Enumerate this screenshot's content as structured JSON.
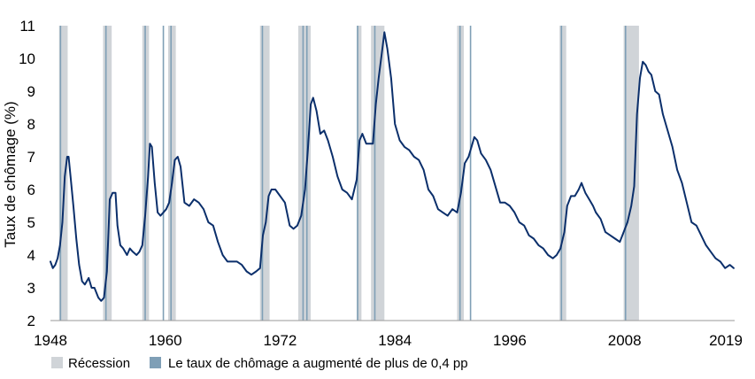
{
  "chart_data": {
    "type": "line",
    "title": "",
    "xlabel": "",
    "ylabel": "Taux de chômage (%)",
    "xlim": [
      1948,
      2019.5
    ],
    "ylim": [
      2,
      11
    ],
    "x_ticks": [
      "1948",
      "1960",
      "1972",
      "1984",
      "1996",
      "2008",
      "2019"
    ],
    "y_ticks": [
      "2",
      "3",
      "4",
      "5",
      "6",
      "7",
      "8",
      "9",
      "10",
      "11"
    ],
    "grid": false,
    "legend_position": "bottom-left",
    "legend": [
      {
        "label": "Récession",
        "color": "#d0d4d8"
      },
      {
        "label": "Le taux de chômage a augmenté de plus de 0,4 pp",
        "color": "#7f9fb6"
      }
    ],
    "line_color": "#0b2f6b",
    "recessions": [
      [
        1948.9,
        1949.8
      ],
      [
        1953.5,
        1954.4
      ],
      [
        1957.6,
        1958.3
      ],
      [
        1960.3,
        1961.1
      ],
      [
        1969.9,
        1970.9
      ],
      [
        1973.9,
        1975.2
      ],
      [
        1980.0,
        1980.5
      ],
      [
        1981.5,
        1982.9
      ],
      [
        1990.5,
        1991.2
      ],
      [
        2001.2,
        2001.9
      ],
      [
        2007.9,
        2009.5
      ]
    ],
    "signal_dates": [
      1949.05,
      1953.8,
      1957.9,
      1959.8,
      1960.6,
      1970.15,
      1974.4,
      1974.8,
      1980.1,
      1981.9,
      1990.8,
      1991.9,
      2001.4,
      2008.1
    ],
    "series": [
      {
        "x": [
          1948.0,
          1948.25,
          1948.5,
          1948.75,
          1949.0,
          1949.25,
          1949.5,
          1949.75,
          1949.9,
          1950.1,
          1950.4,
          1950.7,
          1951.0,
          1951.3,
          1951.6,
          1952.0,
          1952.3,
          1952.6,
          1953.0,
          1953.3,
          1953.6,
          1953.9,
          1954.2,
          1954.5,
          1954.8,
          1955.0,
          1955.3,
          1955.6,
          1956.0,
          1956.3,
          1956.6,
          1957.0,
          1957.3,
          1957.6,
          1957.9,
          1958.2,
          1958.4,
          1958.6,
          1958.9,
          1959.2,
          1959.5,
          1959.8,
          1960.1,
          1960.4,
          1960.7,
          1961.0,
          1961.3,
          1961.6,
          1962.0,
          1962.5,
          1963.0,
          1963.5,
          1964.0,
          1964.5,
          1965.0,
          1965.5,
          1966.0,
          1966.5,
          1967.0,
          1967.5,
          1968.0,
          1968.5,
          1969.0,
          1969.5,
          1969.9,
          1970.2,
          1970.5,
          1970.8,
          1971.1,
          1971.5,
          1972.0,
          1972.5,
          1973.0,
          1973.4,
          1973.8,
          1974.2,
          1974.6,
          1974.9,
          1975.2,
          1975.45,
          1975.8,
          1976.2,
          1976.6,
          1977.0,
          1977.5,
          1978.0,
          1978.5,
          1979.0,
          1979.5,
          1980.0,
          1980.3,
          1980.6,
          1981.0,
          1981.4,
          1981.7,
          1982.0,
          1982.3,
          1982.6,
          1982.9,
          1983.2,
          1983.6,
          1984.0,
          1984.5,
          1985.0,
          1985.5,
          1986.0,
          1986.5,
          1987.0,
          1987.5,
          1988.0,
          1988.5,
          1989.0,
          1989.5,
          1990.0,
          1990.5,
          1990.9,
          1991.3,
          1991.7,
          1992.0,
          1992.3,
          1992.6,
          1993.0,
          1993.5,
          1994.0,
          1994.5,
          1995.0,
          1995.5,
          1996.0,
          1996.5,
          1997.0,
          1997.5,
          1998.0,
          1998.5,
          1999.0,
          1999.5,
          2000.0,
          2000.5,
          2000.9,
          2001.3,
          2001.7,
          2002.0,
          2002.4,
          2002.8,
          2003.2,
          2003.5,
          2003.9,
          2004.3,
          2004.7,
          2005.0,
          2005.5,
          2006.0,
          2006.5,
          2007.0,
          2007.5,
          2007.9,
          2008.3,
          2008.7,
          2009.0,
          2009.3,
          2009.6,
          2009.9,
          2010.2,
          2010.5,
          2010.8,
          2011.2,
          2011.6,
          2012.0,
          2012.5,
          2013.0,
          2013.5,
          2014.0,
          2014.5,
          2015.0,
          2015.5,
          2016.0,
          2016.5,
          2017.0,
          2017.5,
          2018.0,
          2018.5,
          2019.0,
          2019.4
        ],
        "y": [
          3.8,
          3.6,
          3.7,
          3.9,
          4.3,
          5.0,
          6.4,
          7.0,
          7.0,
          6.4,
          5.5,
          4.5,
          3.7,
          3.2,
          3.1,
          3.3,
          3.0,
          3.0,
          2.7,
          2.6,
          2.7,
          3.5,
          5.7,
          5.9,
          5.9,
          4.9,
          4.3,
          4.2,
          4.0,
          4.2,
          4.1,
          4.0,
          4.1,
          4.3,
          5.2,
          6.4,
          7.4,
          7.3,
          6.2,
          5.3,
          5.2,
          5.3,
          5.4,
          5.6,
          6.2,
          6.9,
          7.0,
          6.7,
          5.6,
          5.5,
          5.7,
          5.6,
          5.4,
          5.0,
          4.9,
          4.4,
          4.0,
          3.8,
          3.8,
          3.8,
          3.7,
          3.5,
          3.4,
          3.5,
          3.6,
          4.6,
          5.0,
          5.8,
          6.0,
          6.0,
          5.8,
          5.6,
          4.9,
          4.8,
          4.9,
          5.2,
          6.0,
          7.2,
          8.6,
          8.8,
          8.4,
          7.7,
          7.8,
          7.5,
          7.0,
          6.4,
          6.0,
          5.9,
          5.7,
          6.3,
          7.5,
          7.7,
          7.4,
          7.4,
          7.4,
          8.6,
          9.4,
          10.1,
          10.8,
          10.3,
          9.4,
          8.0,
          7.5,
          7.3,
          7.2,
          7.0,
          6.9,
          6.6,
          6.0,
          5.8,
          5.4,
          5.3,
          5.2,
          5.4,
          5.3,
          5.9,
          6.8,
          7.0,
          7.3,
          7.6,
          7.5,
          7.1,
          6.9,
          6.6,
          6.1,
          5.6,
          5.6,
          5.5,
          5.3,
          5.0,
          4.9,
          4.6,
          4.5,
          4.3,
          4.2,
          4.0,
          3.9,
          4.0,
          4.2,
          4.7,
          5.5,
          5.8,
          5.8,
          6.0,
          6.2,
          5.9,
          5.7,
          5.5,
          5.3,
          5.1,
          4.7,
          4.6,
          4.5,
          4.4,
          4.7,
          5.0,
          5.5,
          6.1,
          8.3,
          9.4,
          9.9,
          9.8,
          9.6,
          9.5,
          9.0,
          8.9,
          8.3,
          7.8,
          7.3,
          6.6,
          6.2,
          5.6,
          5.0,
          4.9,
          4.6,
          4.3,
          4.1,
          3.9,
          3.8,
          3.6,
          3.7,
          3.6
        ]
      }
    ]
  }
}
